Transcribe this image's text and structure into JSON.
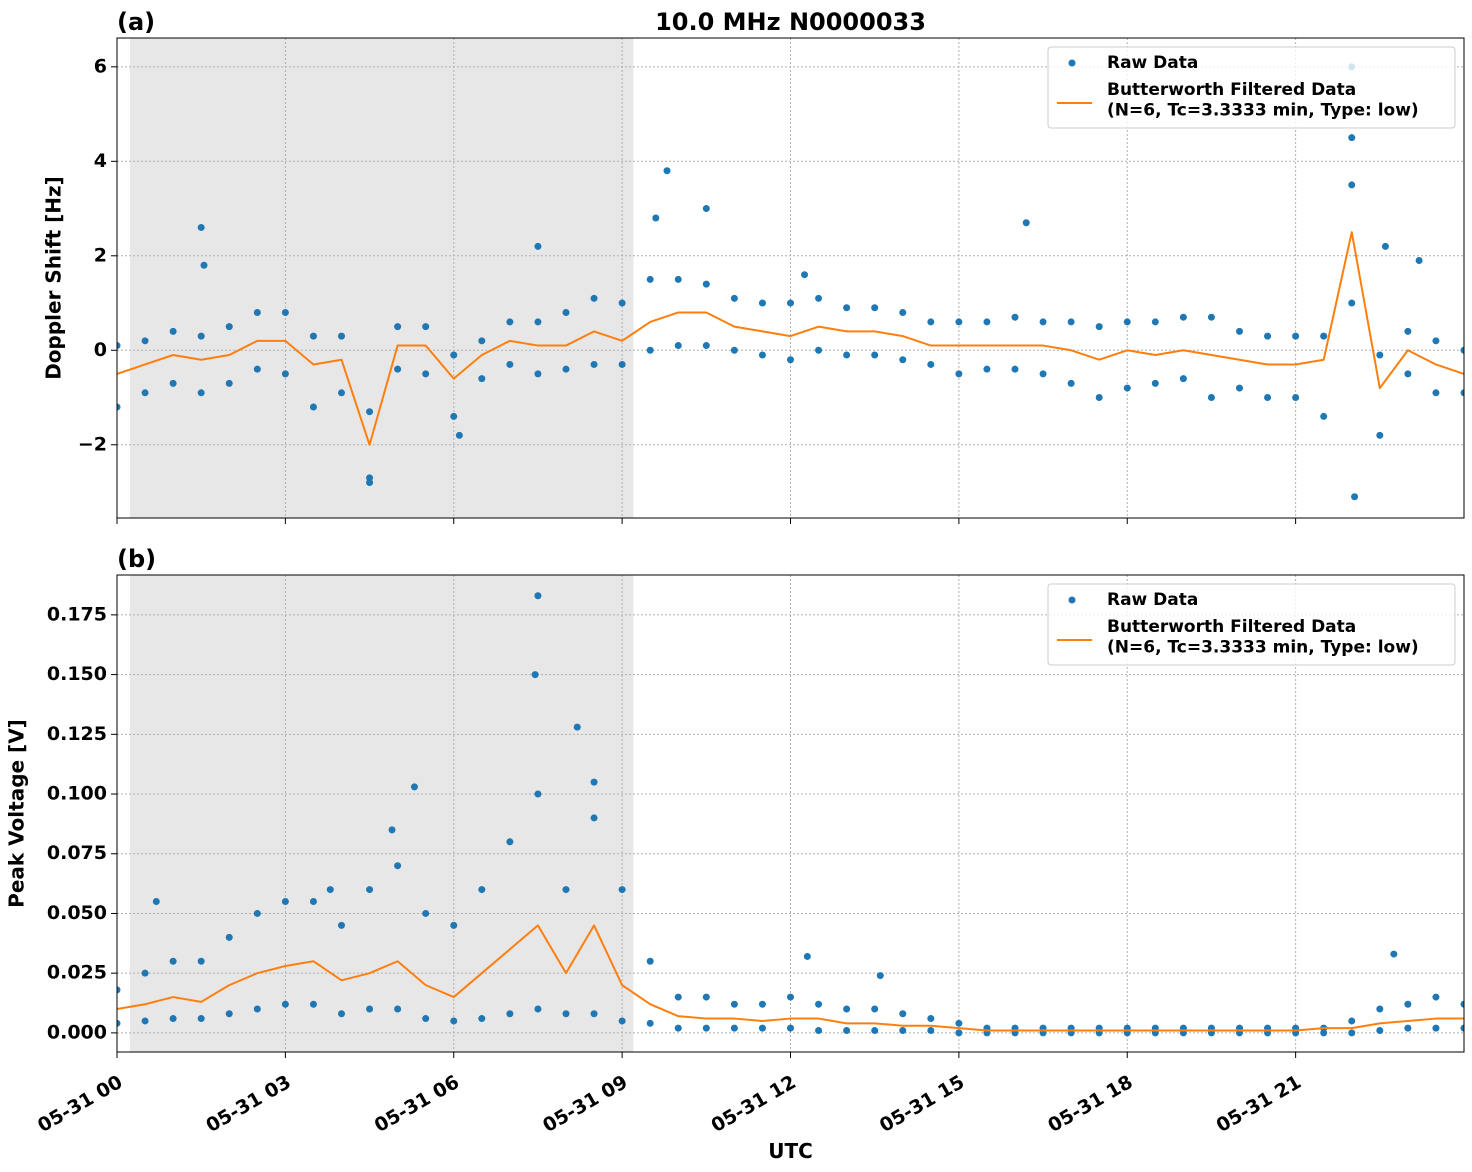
{
  "chart_data": [
    {
      "type": "line",
      "panel_label": "(a)",
      "title": "10.0 MHz N0000033",
      "ylabel": "Doppler Shift [Hz]",
      "xlim": [
        0,
        24
      ],
      "ylim": [
        -3.55,
        6.61
      ],
      "xticks": [
        0,
        3,
        6,
        9,
        12,
        15,
        18,
        21
      ],
      "yticks": [
        {
          "value": -2,
          "label": "−2"
        },
        0,
        2,
        4,
        6
      ],
      "grid": true,
      "legend": "upper right",
      "shade": [
        0.23,
        9.2
      ],
      "shade_color": "#e7e7e7",
      "x": [
        0,
        0.5,
        1,
        1.5,
        2,
        2.5,
        3,
        3.5,
        4,
        4.5,
        5,
        5.5,
        6,
        6.5,
        7,
        7.5,
        8,
        8.5,
        9,
        9.5,
        10,
        10.5,
        11,
        11.5,
        12,
        12.5,
        13,
        13.5,
        14,
        14.5,
        15,
        15.5,
        16,
        16.5,
        17,
        17.5,
        18,
        18.5,
        19,
        19.5,
        20,
        20.5,
        21,
        21.5,
        22,
        22.5,
        23,
        23.5,
        24
      ],
      "series": [
        {
          "name": "Raw Data",
          "style": "markers",
          "color": "#1f77b4",
          "x": [
            0,
            0,
            0.5,
            0.5,
            1,
            1,
            1.5,
            1.5,
            2,
            2,
            2.5,
            2.5,
            3,
            3,
            3.5,
            3.5,
            4,
            4,
            4.5,
            4.5,
            5,
            5,
            5.5,
            5.5,
            6,
            6,
            6.5,
            6.5,
            7,
            7,
            7.5,
            7.5,
            8,
            8,
            8.5,
            8.5,
            9,
            9,
            9.5,
            9.5,
            10,
            10,
            10.5,
            10.5,
            11,
            11,
            11.5,
            11.5,
            12,
            12,
            12.5,
            12.5,
            13,
            13,
            13.5,
            13.5,
            14,
            14,
            14.5,
            14.5,
            15,
            15,
            15.5,
            15.5,
            16,
            16,
            16.5,
            16.5,
            17,
            17,
            17.5,
            17.5,
            18,
            18,
            18.5,
            18.5,
            19,
            19,
            19.5,
            19.5,
            20,
            20,
            20.5,
            20.5,
            21,
            21,
            21.5,
            21.5,
            22,
            22,
            22.5,
            22.5,
            23,
            23,
            23.5,
            23.5,
            24,
            24,
            1.5,
            1.55,
            4.5,
            6.1,
            7.5,
            9.6,
            9.8,
            10.5,
            12.25,
            16.2,
            22,
            22,
            22.05,
            22.6,
            23.2
          ],
          "values": [
            0.1,
            -1.2,
            0.2,
            -0.9,
            0.4,
            -0.7,
            0.3,
            -0.9,
            0.5,
            -0.7,
            0.8,
            -0.4,
            0.8,
            -0.5,
            0.3,
            -1.2,
            0.3,
            -0.9,
            -1.3,
            -2.7,
            0.5,
            -0.4,
            0.5,
            -0.5,
            -0.1,
            -1.4,
            0.2,
            -0.6,
            0.6,
            -0.3,
            0.6,
            -0.5,
            0.8,
            -0.4,
            1.1,
            -0.3,
            1.0,
            -0.3,
            1.5,
            0.0,
            1.5,
            0.1,
            1.4,
            0.1,
            1.1,
            0.0,
            1.0,
            -0.1,
            1.0,
            -0.2,
            1.1,
            0.0,
            0.9,
            -0.1,
            0.9,
            -0.1,
            0.8,
            -0.2,
            0.6,
            -0.3,
            0.6,
            -0.5,
            0.6,
            -0.4,
            0.7,
            -0.4,
            0.6,
            -0.5,
            0.6,
            -0.7,
            0.5,
            -1.0,
            0.6,
            -0.8,
            0.6,
            -0.7,
            0.7,
            -0.6,
            0.7,
            -1.0,
            0.4,
            -0.8,
            0.3,
            -1.0,
            0.3,
            -1.0,
            0.3,
            -1.4,
            3.5,
            1.0,
            -0.1,
            -1.8,
            0.4,
            -0.5,
            0.2,
            -0.9,
            0.0,
            -0.9,
            2.6,
            1.8,
            -2.8,
            -1.8,
            2.2,
            2.8,
            3.8,
            3.0,
            1.6,
            2.7,
            6.0,
            4.5,
            -3.1,
            2.2,
            1.9
          ]
        },
        {
          "name": "Butterworth Filtered Data\n(N=6, Tc=3.3333 min, Type: low)",
          "style": "line",
          "color": "#ff7f0e",
          "values": [
            -0.5,
            -0.3,
            -0.1,
            -0.2,
            -0.1,
            0.2,
            0.2,
            -0.3,
            -0.2,
            -2.0,
            0.1,
            0.1,
            -0.6,
            -0.1,
            0.2,
            0.1,
            0.1,
            0.4,
            0.2,
            0.6,
            0.8,
            0.8,
            0.5,
            0.4,
            0.3,
            0.5,
            0.4,
            0.4,
            0.3,
            0.1,
            0.1,
            0.1,
            0.1,
            0.1,
            0.0,
            -0.2,
            0.0,
            -0.1,
            0.0,
            -0.1,
            -0.2,
            -0.3,
            -0.3,
            -0.2,
            2.5,
            -0.8,
            0.0,
            -0.3,
            -0.5
          ]
        }
      ]
    },
    {
      "type": "line",
      "panel_label": "(b)",
      "ylabel": "Peak Voltage [V]",
      "xlabel": "UTC",
      "xlim": [
        0,
        24
      ],
      "ylim": [
        -0.008,
        0.1917
      ],
      "xticks": [
        {
          "value": 0,
          "label": "05-31 00"
        },
        {
          "value": 3,
          "label": "05-31 03"
        },
        {
          "value": 6,
          "label": "05-31 06"
        },
        {
          "value": 9,
          "label": "05-31 09"
        },
        {
          "value": 12,
          "label": "05-31 12"
        },
        {
          "value": 15,
          "label": "05-31 15"
        },
        {
          "value": 18,
          "label": "05-31 18"
        },
        {
          "value": 21,
          "label": "05-31 21"
        }
      ],
      "yticks": [
        {
          "value": 0,
          "label": "0.000"
        },
        0.025,
        {
          "value": 0.05,
          "label": "0.050"
        },
        0.075,
        {
          "value": 0.1,
          "label": "0.100"
        },
        0.125,
        {
          "value": 0.15,
          "label": "0.150"
        },
        0.175
      ],
      "grid": true,
      "legend": "upper right",
      "shade": [
        0.23,
        9.2
      ],
      "shade_color": "#e7e7e7",
      "x": [
        0,
        0.5,
        1,
        1.5,
        2,
        2.5,
        3,
        3.5,
        4,
        4.5,
        5,
        5.5,
        6,
        6.5,
        7,
        7.5,
        8,
        8.5,
        9,
        9.5,
        10,
        10.5,
        11,
        11.5,
        12,
        12.5,
        13,
        13.5,
        14,
        14.5,
        15,
        15.5,
        16,
        16.5,
        17,
        17.5,
        18,
        18.5,
        19,
        19.5,
        20,
        20.5,
        21,
        21.5,
        22,
        22.5,
        23,
        23.5,
        24
      ],
      "series": [
        {
          "name": "Raw Data",
          "style": "markers",
          "color": "#1f77b4",
          "x": [
            0,
            0,
            0.5,
            0.5,
            1,
            1,
            1.5,
            1.5,
            2,
            2,
            2.5,
            2.5,
            3,
            3,
            3.5,
            3.5,
            4,
            4,
            4.5,
            4.5,
            5,
            5,
            5.5,
            5.5,
            6,
            6,
            6.5,
            6.5,
            7,
            7,
            7.5,
            7.5,
            8,
            8,
            8.5,
            8.5,
            9,
            9,
            9.5,
            9.5,
            10,
            10,
            10.5,
            10.5,
            11,
            11,
            11.5,
            11.5,
            12,
            12,
            12.5,
            12.5,
            13,
            13,
            13.5,
            13.5,
            14,
            14,
            14.5,
            14.5,
            15,
            15,
            15.5,
            15.5,
            16,
            16,
            16.5,
            16.5,
            17,
            17,
            17.5,
            17.5,
            18,
            18,
            18.5,
            18.5,
            19,
            19,
            19.5,
            19.5,
            20,
            20,
            20.5,
            20.5,
            21,
            21,
            21.5,
            21.5,
            22,
            22,
            22.5,
            22.5,
            23,
            23,
            23.5,
            23.5,
            24,
            24,
            0.7,
            3.8,
            4.9,
            5.3,
            7.45,
            7.5,
            8.2,
            8.5,
            12.3,
            13.6,
            22.75
          ],
          "values": [
            0.018,
            0.004,
            0.025,
            0.005,
            0.03,
            0.006,
            0.03,
            0.006,
            0.04,
            0.008,
            0.05,
            0.01,
            0.055,
            0.012,
            0.055,
            0.012,
            0.045,
            0.008,
            0.06,
            0.01,
            0.07,
            0.01,
            0.05,
            0.006,
            0.045,
            0.005,
            0.06,
            0.006,
            0.08,
            0.008,
            0.1,
            0.01,
            0.06,
            0.008,
            0.09,
            0.008,
            0.06,
            0.005,
            0.03,
            0.004,
            0.015,
            0.002,
            0.015,
            0.002,
            0.012,
            0.002,
            0.012,
            0.002,
            0.015,
            0.002,
            0.012,
            0.001,
            0.01,
            0.001,
            0.01,
            0.001,
            0.008,
            0.001,
            0.006,
            0.001,
            0.004,
            0,
            0.002,
            0,
            0.002,
            0,
            0.002,
            0,
            0.002,
            0,
            0.002,
            0,
            0.002,
            0,
            0.002,
            0,
            0.002,
            0,
            0.002,
            0,
            0.002,
            0,
            0.002,
            0,
            0.002,
            0,
            0.002,
            0,
            0.005,
            0,
            0.01,
            0.001,
            0.012,
            0.002,
            0.015,
            0.002,
            0.012,
            0.002,
            0.055,
            0.06,
            0.085,
            0.103,
            0.15,
            0.183,
            0.128,
            0.105,
            0.032,
            0.024,
            0.033
          ]
        },
        {
          "name": "Butterworth Filtered Data\n(N=6, Tc=3.3333 min, Type: low)",
          "style": "line",
          "color": "#ff7f0e",
          "values": [
            0.01,
            0.012,
            0.015,
            0.013,
            0.02,
            0.025,
            0.028,
            0.03,
            0.022,
            0.025,
            0.03,
            0.02,
            0.015,
            0.025,
            0.035,
            0.045,
            0.025,
            0.045,
            0.02,
            0.012,
            0.007,
            0.006,
            0.006,
            0.005,
            0.006,
            0.006,
            0.004,
            0.004,
            0.003,
            0.003,
            0.002,
            0.001,
            0.001,
            0.001,
            0.001,
            0.001,
            0.001,
            0.001,
            0.001,
            0.001,
            0.001,
            0.001,
            0.001,
            0.002,
            0.002,
            0.004,
            0.005,
            0.006,
            0.006
          ]
        }
      ]
    }
  ]
}
